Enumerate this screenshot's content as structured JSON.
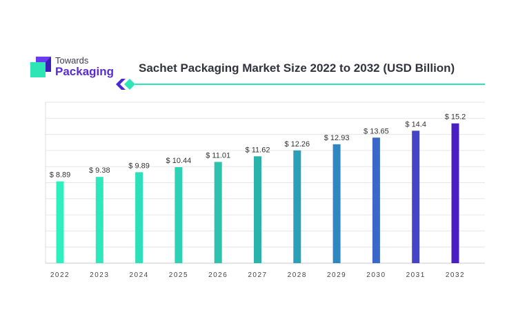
{
  "brand": {
    "line1": "Towards",
    "line2": "Packaging",
    "mark_colors": [
      "#3d1fb8",
      "#6a3cf0",
      "#2ee6b5"
    ]
  },
  "chart_data": {
    "type": "bar",
    "title": "Sachet Packaging Market Size 2022 to 2032 (USD Billion)",
    "categories": [
      "2022",
      "2023",
      "2024",
      "2025",
      "2026",
      "2027",
      "2028",
      "2029",
      "2030",
      "2031",
      "2032"
    ],
    "values": [
      8.89,
      9.38,
      9.89,
      10.44,
      11.01,
      11.62,
      12.26,
      12.93,
      13.65,
      14.4,
      15.2
    ],
    "data_labels": [
      "$ 8.89",
      "$ 9.38",
      "$ 9.89",
      "$ 10.44",
      "$ 11.01",
      "$ 11.62",
      "$ 12.26",
      "$ 12.93",
      "$ 13.65",
      "$ 14.4",
      "$ 15.2"
    ],
    "xlabel": "",
    "ylabel": "",
    "ylim": [
      0,
      17.5
    ],
    "grid": true,
    "legend": "none",
    "bar_colors": [
      "#2ef0be",
      "#2ee8bc",
      "#2de0b9",
      "#2cd2b4",
      "#2bc3ae",
      "#2bb3ab",
      "#2c9fb6",
      "#2e87c1",
      "#3a68c8",
      "#4544c7",
      "#4a1fc2"
    ]
  }
}
